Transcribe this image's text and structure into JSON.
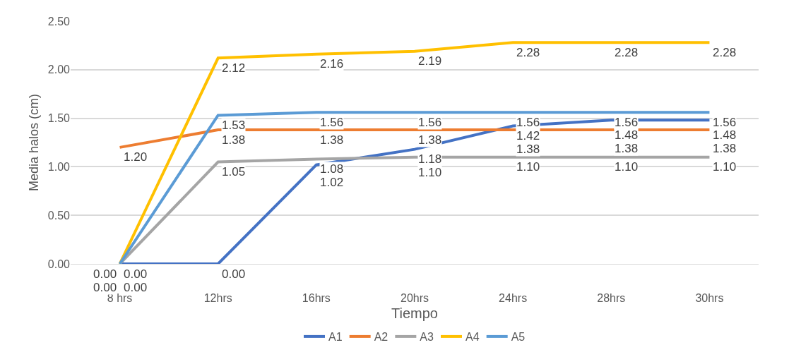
{
  "chart_data": {
    "type": "line",
    "xlabel": "Tiempo",
    "ylabel": "Media halos (cm)",
    "categories": [
      "8 hrs",
      "12hrs",
      "16hrs",
      "20hrs",
      "24hrs",
      "28hrs",
      "30hrs"
    ],
    "series": [
      {
        "name": "A1",
        "color": "#4472c4",
        "values": [
          0,
          0,
          1.02,
          1.18,
          1.42,
          1.48,
          1.48
        ],
        "value_labels": [
          "0.00",
          "0.00",
          "1.02",
          "1.18",
          "1.42",
          "1.48",
          "1.48"
        ]
      },
      {
        "name": "A2",
        "color": "#ed7d31",
        "values": [
          1.2,
          1.38,
          1.38,
          1.38,
          1.38,
          1.38,
          1.38
        ],
        "value_labels": [
          "1.20",
          "1.38",
          "1.38",
          "1.38",
          "1.38",
          "1.38",
          "1.38"
        ]
      },
      {
        "name": "A3",
        "color": "#a5a5a5",
        "values": [
          0,
          1.05,
          1.08,
          1.1,
          1.1,
          1.1,
          1.1
        ],
        "value_labels": [
          "0.00",
          "1.05",
          "1.08",
          "1.10",
          "1.10",
          "1.10",
          "1.10"
        ]
      },
      {
        "name": "A4",
        "color": "#ffc000",
        "values": [
          0,
          2.12,
          2.16,
          2.19,
          2.28,
          2.28,
          2.28
        ],
        "value_labels": [
          "0.00",
          "2.12",
          "2.16",
          "2.19",
          "2.28",
          "2.28",
          "2.28"
        ]
      },
      {
        "name": "A5",
        "color": "#5b9bd5",
        "values": [
          0,
          1.53,
          1.56,
          1.56,
          1.56,
          1.56,
          1.56
        ],
        "value_labels": [
          "0.00",
          "1.53",
          "1.56",
          "1.56",
          "1.56",
          "1.56",
          "1.56"
        ]
      }
    ],
    "ylim": [
      0,
      2.5
    ],
    "yticks": [
      {
        "value": 0,
        "label": "0.00"
      },
      {
        "value": 0.5,
        "label": "0.50"
      },
      {
        "value": 1,
        "label": "1.00"
      },
      {
        "value": 1.5,
        "label": "1.50"
      },
      {
        "value": 2,
        "label": "2.00"
      },
      {
        "value": 2.5,
        "label": "2.50"
      }
    ],
    "grid": "y",
    "legend": "bottom",
    "marker": "none",
    "line_style": "solid"
  }
}
